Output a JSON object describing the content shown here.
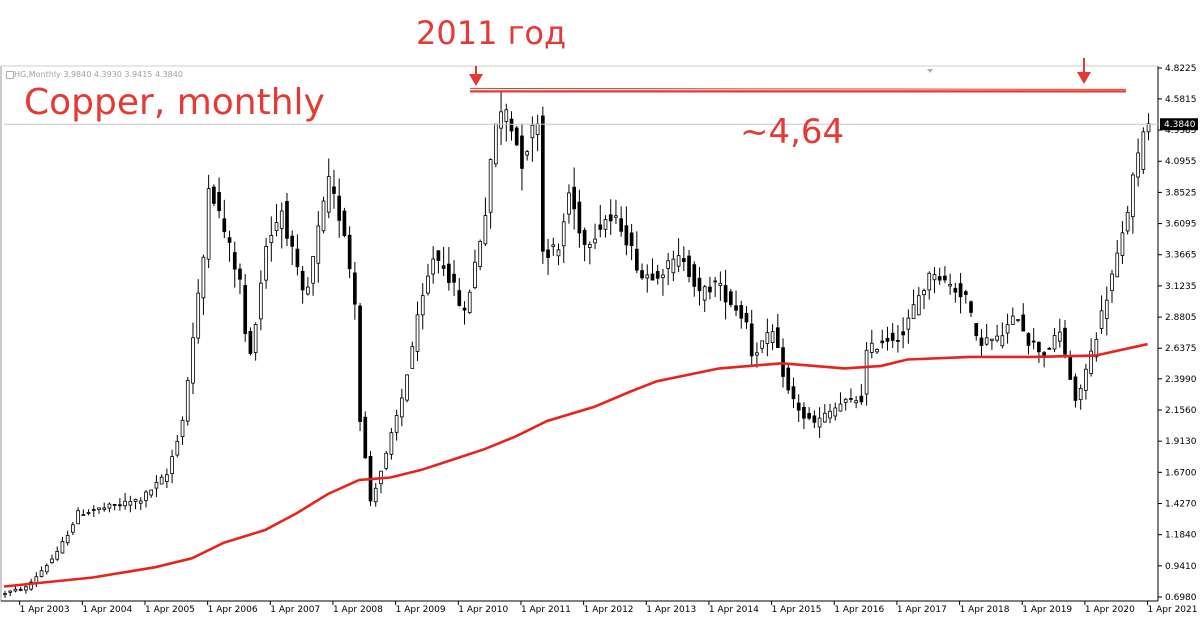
{
  "header": {
    "text": "HG,Monthly  3.9840 4.3930 3.9415 4.3840"
  },
  "annotations": {
    "year_label": "2011 год",
    "chart_label": "Copper, monthly",
    "level_label": "~4,64"
  },
  "colors": {
    "annotation": "#e53935",
    "moving_average": "#e8221c",
    "candle_up": "#ffffff",
    "candle_down": "#000000",
    "candle_outline": "#000000",
    "axis": "#000000",
    "price_tag_bg": "#000000",
    "price_tag_text": "#ffffff"
  },
  "chart_data": {
    "type": "candlestick",
    "timeframe": "monthly",
    "symbol": "HG",
    "x_tick_labels": [
      "1 Apr 2003",
      "1 Apr 2004",
      "1 Apr 2005",
      "1 Apr 2006",
      "1 Apr 2007",
      "1 Apr 2008",
      "1 Apr 2009",
      "1 Apr 2010",
      "1 Apr 2011",
      "1 Apr 2012",
      "1 Apr 2013",
      "1 Apr 2014",
      "1 Apr 2015",
      "1 Apr 2016",
      "1 Apr 2017",
      "1 Apr 2018",
      "1 Apr 2019",
      "1 Apr 2020",
      "1 Apr 2021"
    ],
    "y_tick_labels": [
      "4.8225",
      "4.5815",
      "4.3385",
      "4.0955",
      "3.8525",
      "3.6095",
      "3.3665",
      "3.1235",
      "2.8805",
      "2.6375",
      "2.3990",
      "2.1560",
      "1.9130",
      "1.6700",
      "1.4270",
      "1.1840",
      "0.9410",
      "0.6980"
    ],
    "ylim": [
      0.698,
      4.8225
    ],
    "current_price": "4.3840",
    "resistance_level": 4.64,
    "grid": false,
    "price_points": [
      [
        "2003-01",
        0.72
      ],
      [
        "2003-06",
        0.77
      ],
      [
        "2003-12",
        1.04
      ],
      [
        "2004-04",
        1.35
      ],
      [
        "2004-10",
        1.4
      ],
      [
        "2005-04",
        1.46
      ],
      [
        "2005-09",
        1.65
      ],
      [
        "2005-12",
        2.08
      ],
      [
        "2006-04",
        3.35
      ],
      [
        "2006-05",
        3.95
      ],
      [
        "2006-08",
        3.55
      ],
      [
        "2006-11",
        3.15
      ],
      [
        "2006-12",
        2.75
      ],
      [
        "2007-01",
        2.58
      ],
      [
        "2007-04",
        3.45
      ],
      [
        "2007-07",
        3.72
      ],
      [
        "2007-11",
        3.05
      ],
      [
        "2007-12",
        3.1
      ],
      [
        "2008-02",
        3.55
      ],
      [
        "2008-04",
        3.92
      ],
      [
        "2008-07",
        3.55
      ],
      [
        "2008-09",
        3.0
      ],
      [
        "2008-10",
        2.1
      ],
      [
        "2008-12",
        1.45
      ],
      [
        "2009-03",
        1.8
      ],
      [
        "2009-06",
        2.25
      ],
      [
        "2009-09",
        2.85
      ],
      [
        "2009-12",
        3.35
      ],
      [
        "2010-02",
        3.3
      ],
      [
        "2010-06",
        2.9
      ],
      [
        "2010-10",
        3.7
      ],
      [
        "2010-12",
        4.4
      ],
      [
        "2011-02",
        4.5
      ],
      [
        "2011-05",
        4.1
      ],
      [
        "2011-08",
        4.45
      ],
      [
        "2011-09",
        3.4
      ],
      [
        "2011-12",
        3.4
      ],
      [
        "2012-02",
        3.85
      ],
      [
        "2012-05",
        3.45
      ],
      [
        "2012-09",
        3.65
      ],
      [
        "2012-12",
        3.6
      ],
      [
        "2013-04",
        3.2
      ],
      [
        "2013-08",
        3.25
      ],
      [
        "2013-12",
        3.35
      ],
      [
        "2014-03",
        3.05
      ],
      [
        "2014-06",
        3.15
      ],
      [
        "2014-12",
        2.85
      ],
      [
        "2015-01",
        2.6
      ],
      [
        "2015-05",
        2.75
      ],
      [
        "2015-08",
        2.3
      ],
      [
        "2015-11",
        2.1
      ],
      [
        "2016-01",
        2.05
      ],
      [
        "2016-06",
        2.2
      ],
      [
        "2016-10",
        2.25
      ],
      [
        "2016-11",
        2.6
      ],
      [
        "2017-02",
        2.7
      ],
      [
        "2017-06",
        2.75
      ],
      [
        "2017-09",
        3.05
      ],
      [
        "2017-12",
        3.25
      ],
      [
        "2018-02",
        3.15
      ],
      [
        "2018-06",
        3.05
      ],
      [
        "2018-08",
        2.7
      ],
      [
        "2018-12",
        2.7
      ],
      [
        "2019-04",
        2.9
      ],
      [
        "2019-06",
        2.7
      ],
      [
        "2019-09",
        2.6
      ],
      [
        "2019-12",
        2.75
      ],
      [
        "2020-01",
        2.6
      ],
      [
        "2020-03",
        2.2
      ],
      [
        "2020-06",
        2.6
      ],
      [
        "2020-09",
        3.05
      ],
      [
        "2020-12",
        3.5
      ],
      [
        "2021-02",
        3.95
      ],
      [
        "2021-03",
        4.1
      ],
      [
        "2021-04",
        4.384
      ]
    ],
    "moving_average": [
      [
        "2003-01",
        0.78
      ],
      [
        "2004-06",
        0.85
      ],
      [
        "2005-06",
        0.93
      ],
      [
        "2006-01",
        1.0
      ],
      [
        "2006-07",
        1.12
      ],
      [
        "2007-03",
        1.22
      ],
      [
        "2007-09",
        1.35
      ],
      [
        "2008-03",
        1.5
      ],
      [
        "2008-09",
        1.61
      ],
      [
        "2009-03",
        1.63
      ],
      [
        "2009-09",
        1.69
      ],
      [
        "2010-03",
        1.77
      ],
      [
        "2010-09",
        1.85
      ],
      [
        "2011-03",
        1.95
      ],
      [
        "2011-09",
        2.07
      ],
      [
        "2012-06",
        2.18
      ],
      [
        "2013-01",
        2.3
      ],
      [
        "2013-06",
        2.38
      ],
      [
        "2014-06",
        2.48
      ],
      [
        "2015-06",
        2.52
      ],
      [
        "2016-06",
        2.48
      ],
      [
        "2017-01",
        2.5
      ],
      [
        "2017-06",
        2.55
      ],
      [
        "2018-06",
        2.57
      ],
      [
        "2019-06",
        2.57
      ],
      [
        "2020-06",
        2.58
      ],
      [
        "2021-04",
        2.67
      ]
    ]
  }
}
